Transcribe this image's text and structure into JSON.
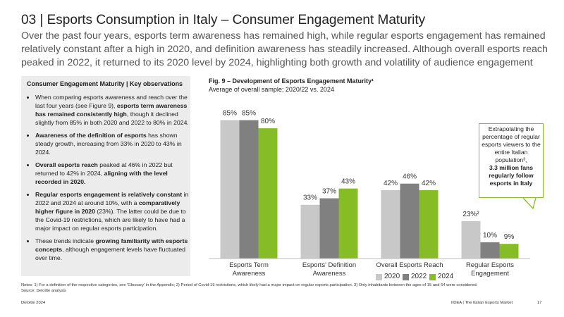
{
  "header": {
    "title": "03 | Esports Consumption in Italy – Consumer Engagement Maturity",
    "intro": "Over the past four years, esports term awareness has remained high, while regular esports engagement has remained relatively constant after a high in 2020, and definition awareness has steadily increased. Although overall esports reach peaked in 2022, it returned to its 2020 level by 2024, highlighting both growth and volatility of audience engagement"
  },
  "sidebar": {
    "title": "Consumer Engagement Maturity | Key observations",
    "bullets": [
      [
        {
          "text": "When comparing esports awareness and reach over the last four years (see Figure 9), "
        },
        {
          "text": "esports term awareness has remained consistently high",
          "bold": true
        },
        {
          "text": ", though it declined slightly from 85% in both 2020 and 2022 to 80% in 2024."
        }
      ],
      [
        {
          "text": "Awareness of the definition of esports",
          "bold": true
        },
        {
          "text": " has shown steady growth, increasing from 33% in 2020 to 43% in 2024."
        }
      ],
      [
        {
          "text": "Overall esports reach",
          "bold": true
        },
        {
          "text": " peaked at 46% in 2022 but returned to 42% in 2024, "
        },
        {
          "text": "aligning with the level recorded in 2020.",
          "bold": true
        }
      ],
      [
        {
          "text": "Regular esports engagement is relatively constant",
          "bold": true
        },
        {
          "text": " in 2022 and 2024 at around 10%, with a "
        },
        {
          "text": "comparatively higher figure in 2020",
          "bold": true
        },
        {
          "text": " (23%). The latter could be due to the Covid-19 restrictions, which are likely to have had a major impact on regular esports participation."
        }
      ],
      [
        {
          "text": " These trends indicate "
        },
        {
          "text": "growing familiarity with esports concepts",
          "bold": true
        },
        {
          "text": ", although engagement levels have fluctuated over time."
        }
      ]
    ]
  },
  "chart_data": {
    "type": "bar",
    "title": "Fig. 9 – Development of Esports Engagement Maturity¹",
    "subtitle": "Average of overall sample; 2020/22 vs. 2024",
    "categories": [
      "Esports Term Awareness",
      "Esports' Definition Awareness",
      "Overall Esports Reach",
      "Regular Esports Engagement"
    ],
    "series": [
      {
        "name": "2020",
        "color": "#c8c8c8",
        "values": [
          85,
          33,
          42,
          23
        ],
        "value_labels": [
          "85%",
          "33%",
          "42%",
          "23%²"
        ]
      },
      {
        "name": "2022",
        "color": "#808080",
        "values": [
          85,
          37,
          46,
          10
        ],
        "value_labels": [
          "85%",
          "37%",
          "46%",
          "10%"
        ]
      },
      {
        "name": "2024",
        "color": "#86bc25",
        "values": [
          80,
          43,
          42,
          9
        ],
        "value_labels": [
          "80%",
          "43%",
          "42%",
          "9%"
        ]
      }
    ],
    "ylim": [
      0,
      90
    ],
    "annotation": {
      "text": "Extrapolating the percentage of regular esports viewers to the entire Italian population³,",
      "highlight": "3.3 million fans regularly follow esports in Italy"
    }
  },
  "notes": "Notes: 1) For a definition of the respective categories, see 'Glossary' in the Appendix; 2) Period of Covid-19 restrictions, which likely had a major impact on regular esports participation. 3) Only inhabitants between the ages of 15 and 64 were considered.",
  "source": "Source: Deloitte analysis",
  "footer": {
    "left": "Deloitte 2024",
    "right": "IIDEA | The Italian Esports Market",
    "page": "17"
  }
}
